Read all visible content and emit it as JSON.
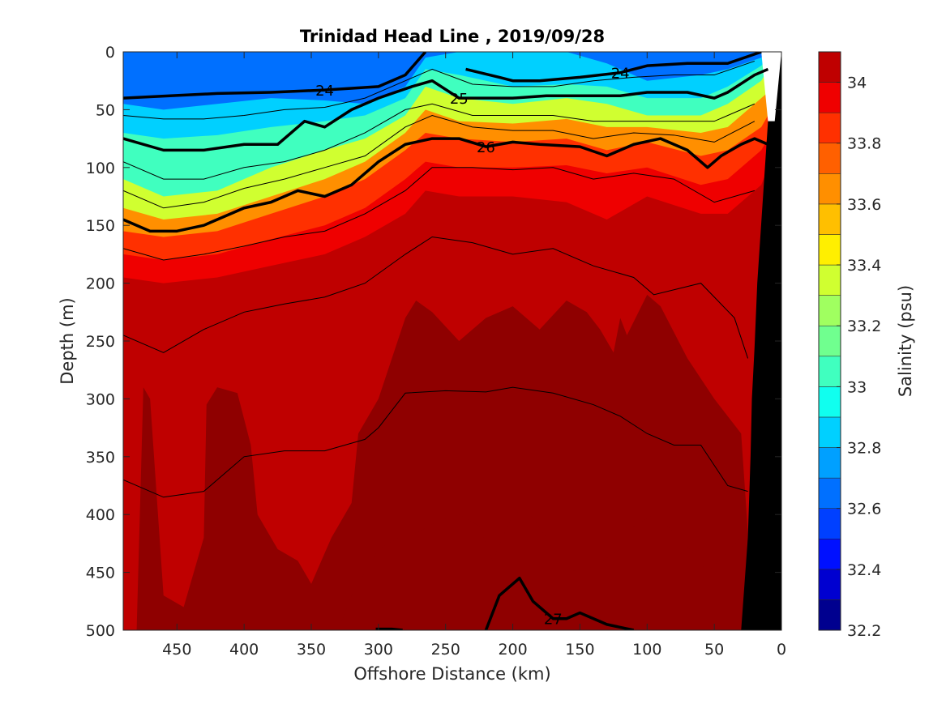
{
  "chart_data": {
    "type": "heatmap",
    "title": "Trinidad Head Line , 2019/09/28",
    "xlabel": "Offshore Distance (km)",
    "ylabel": "Depth (m)",
    "colorbar_label": "Salinity (psu)",
    "x_reversed": true,
    "y_reversed": true,
    "xlim": [
      490,
      0
    ],
    "ylim": [
      0,
      500
    ],
    "x_ticks": [
      450,
      400,
      350,
      300,
      250,
      200,
      150,
      100,
      50,
      0
    ],
    "y_ticks": [
      0,
      50,
      100,
      150,
      200,
      250,
      300,
      350,
      400,
      450,
      500
    ],
    "colorbar_ticks": [
      32.2,
      32.4,
      32.6,
      32.8,
      33,
      33.2,
      33.4,
      33.6,
      33.8,
      34
    ],
    "colorbar_range": [
      32.2,
      34.1
    ],
    "colorbar_levels": [
      32.2,
      32.3,
      32.4,
      32.5,
      32.6,
      32.7,
      32.8,
      32.9,
      33.0,
      33.1,
      33.2,
      33.3,
      33.4,
      33.5,
      33.6,
      33.7,
      33.8,
      33.9,
      34.0
    ],
    "colorbar_colors": [
      "#00008f",
      "#0000d0",
      "#0010ff",
      "#0040ff",
      "#0070ff",
      "#00a0ff",
      "#00d0ff",
      "#10ffef",
      "#40ffbf",
      "#70ff8f",
      "#a0ff60",
      "#d0ff30",
      "#ffef00",
      "#ffbf00",
      "#ff8f00",
      "#ff6000",
      "#ff3000",
      "#ef0000",
      "#bf0000",
      "#8f0000"
    ],
    "salinity_bands": [
      {
        "salinity": 32.55,
        "x": [
          490,
          460,
          420,
          380,
          340,
          310,
          280,
          265,
          240,
          200,
          160,
          130,
          100,
          60,
          40,
          15,
          10
        ],
        "depth": [
          0,
          0,
          0,
          0,
          0,
          0,
          0,
          0,
          0,
          0,
          0,
          0,
          0,
          0,
          0,
          0,
          0
        ],
        "depth_bottom": [
          45,
          50,
          45,
          40,
          42,
          45,
          30,
          5,
          0,
          0,
          0,
          10,
          25,
          20,
          15,
          5,
          0
        ]
      },
      {
        "salinity": 32.75,
        "x": [
          490,
          460,
          420,
          380,
          340,
          310,
          280,
          265,
          240,
          200,
          160,
          130,
          100,
          60,
          40,
          15,
          10
        ],
        "depth_bottom": [
          70,
          75,
          72,
          65,
          60,
          55,
          40,
          15,
          20,
          30,
          28,
          30,
          40,
          40,
          30,
          12,
          5
        ]
      },
      {
        "salinity": 32.95,
        "x": [
          490,
          460,
          420,
          380,
          340,
          310,
          280,
          265,
          240,
          200,
          160,
          130,
          100,
          60,
          40,
          15,
          10
        ],
        "depth_bottom": [
          110,
          125,
          120,
          100,
          85,
          75,
          55,
          30,
          40,
          45,
          40,
          45,
          55,
          55,
          45,
          25,
          15
        ]
      },
      {
        "salinity": 33.25,
        "x": [
          490,
          460,
          420,
          380,
          340,
          310,
          280,
          265,
          240,
          200,
          160,
          130,
          100,
          60,
          40,
          15,
          10
        ],
        "depth_bottom": [
          135,
          145,
          140,
          125,
          110,
          95,
          70,
          50,
          60,
          62,
          58,
          65,
          65,
          70,
          65,
          40,
          35
        ]
      },
      {
        "salinity": 33.55,
        "x": [
          490,
          460,
          420,
          380,
          340,
          310,
          280,
          265,
          240,
          200,
          160,
          130,
          100,
          60,
          40,
          15,
          10
        ],
        "depth_bottom": [
          155,
          160,
          155,
          140,
          125,
          110,
          85,
          70,
          75,
          78,
          75,
          85,
          78,
          90,
          85,
          65,
          55
        ]
      },
      {
        "salinity": 33.75,
        "x": [
          490,
          460,
          420,
          380,
          340,
          310,
          280,
          265,
          240,
          200,
          160,
          130,
          100,
          60,
          40,
          15,
          10
        ],
        "depth_bottom": [
          175,
          180,
          175,
          162,
          150,
          135,
          110,
          95,
          100,
          100,
          98,
          105,
          100,
          115,
          110,
          85,
          75
        ]
      },
      {
        "salinity": 33.85,
        "x": [
          490,
          460,
          420,
          380,
          340,
          310,
          280,
          265,
          240,
          200,
          160,
          130,
          100,
          60,
          40,
          15,
          10
        ],
        "depth_bottom": [
          195,
          200,
          195,
          185,
          175,
          160,
          140,
          120,
          125,
          125,
          130,
          145,
          125,
          140,
          140,
          115,
          100
        ]
      }
    ],
    "deep_salinity_patches": [
      {
        "salinity": 34.05,
        "x": [
          490,
          480,
          475,
          470,
          460,
          445,
          430,
          428,
          420,
          405,
          395,
          390,
          375,
          360,
          350,
          335,
          320,
          315,
          300,
          280,
          272,
          260,
          240,
          220,
          200,
          180,
          160,
          145,
          135,
          125,
          120,
          115,
          100,
          90,
          70,
          50,
          30,
          20
        ],
        "depth": [
          500,
          500,
          290,
          300,
          470,
          480,
          420,
          305,
          290,
          295,
          340,
          400,
          430,
          440,
          460,
          420,
          390,
          330,
          300,
          230,
          215,
          225,
          250,
          230,
          220,
          240,
          215,
          225,
          240,
          260,
          230,
          245,
          210,
          220,
          265,
          300,
          330,
          500
        ]
      },
      {
        "salinity": 34.15,
        "x": [
          330,
          320,
          300,
          285,
          270,
          255,
          240,
          225,
          215,
          200,
          190,
          175,
          160,
          140,
          120,
          110,
          95,
          75,
          55,
          30,
          25
        ],
        "depth": [
          500,
          470,
          430,
          420,
          415,
          405,
          400,
          410,
          440,
          400,
          395,
          420,
          450,
          445,
          430,
          410,
          400,
          420,
          450,
          420,
          500
        ]
      }
    ],
    "isopycnals_labeled": [
      {
        "label": "24",
        "x": [
          490,
          455,
          420,
          380,
          340,
          300,
          280,
          265
        ],
        "depth": [
          40,
          38,
          36,
          35,
          33,
          30,
          20,
          0
        ]
      },
      {
        "label": "24",
        "x": [
          235,
          210,
          200,
          180,
          150,
          120,
          100,
          70,
          40,
          20,
          15
        ],
        "depth": [
          15,
          22,
          25,
          25,
          22,
          18,
          12,
          10,
          10,
          2,
          0
        ]
      },
      {
        "label": "25",
        "x": [
          490,
          460,
          430,
          400,
          375,
          355,
          340,
          320,
          300,
          275,
          260,
          240,
          220,
          200,
          175,
          150,
          120,
          100,
          70,
          50,
          40,
          20,
          10
        ],
        "depth": [
          75,
          85,
          85,
          80,
          80,
          60,
          65,
          50,
          40,
          30,
          25,
          40,
          40,
          40,
          38,
          38,
          38,
          35,
          35,
          40,
          35,
          20,
          15
        ]
      },
      {
        "label": "26",
        "x": [
          490,
          470,
          450,
          430,
          400,
          380,
          360,
          340,
          320,
          300,
          280,
          260,
          240,
          220,
          200,
          180,
          150,
          130,
          110,
          90,
          70,
          55,
          45,
          30,
          20,
          10
        ],
        "depth": [
          145,
          155,
          155,
          150,
          135,
          130,
          120,
          125,
          115,
          95,
          80,
          75,
          75,
          82,
          78,
          80,
          82,
          90,
          80,
          75,
          85,
          100,
          90,
          80,
          75,
          80
        ]
      },
      {
        "label": "27",
        "x": [
          220,
          210,
          195,
          185,
          170,
          160,
          150,
          130,
          110
        ],
        "depth": [
          500,
          470,
          455,
          475,
          490,
          490,
          485,
          495,
          500
        ]
      },
      {
        "label": "",
        "x": [
          302,
          290,
          282
        ],
        "depth": [
          499,
          499,
          500
        ]
      }
    ],
    "isopycnals_thin": [
      {
        "x": [
          490,
          460,
          430,
          400,
          370,
          340,
          310,
          280,
          260,
          230,
          200,
          170,
          140,
          110,
          80,
          50,
          20
        ],
        "depth": [
          55,
          58,
          58,
          55,
          50,
          48,
          40,
          25,
          15,
          28,
          30,
          30,
          25,
          22,
          20,
          20,
          8
        ]
      },
      {
        "x": [
          490,
          460,
          430,
          400,
          370,
          340,
          310,
          280,
          260,
          230,
          200,
          170,
          140,
          110,
          80,
          50,
          20
        ],
        "depth": [
          95,
          110,
          110,
          100,
          95,
          85,
          70,
          50,
          45,
          55,
          55,
          55,
          60,
          60,
          60,
          60,
          45
        ]
      },
      {
        "x": [
          490,
          460,
          430,
          400,
          370,
          340,
          310,
          280,
          260,
          230,
          200,
          170,
          140,
          110,
          80,
          50,
          20
        ],
        "depth": [
          120,
          135,
          130,
          118,
          110,
          100,
          90,
          65,
          55,
          65,
          68,
          68,
          75,
          70,
          72,
          78,
          60
        ]
      },
      {
        "x": [
          490,
          460,
          430,
          400,
          370,
          340,
          310,
          280,
          260,
          230,
          200,
          170,
          140,
          110,
          80,
          50,
          20
        ],
        "depth": [
          170,
          180,
          175,
          168,
          160,
          155,
          140,
          120,
          100,
          100,
          102,
          100,
          110,
          105,
          110,
          130,
          120
        ]
      },
      {
        "x": [
          490,
          460,
          430,
          400,
          370,
          340,
          310,
          280,
          260,
          230,
          200,
          170,
          140,
          110,
          95,
          60,
          35,
          25
        ],
        "depth": [
          245,
          260,
          240,
          225,
          218,
          212,
          200,
          175,
          160,
          165,
          175,
          170,
          185,
          195,
          210,
          200,
          230,
          265
        ]
      },
      {
        "x": [
          490,
          460,
          430,
          400,
          370,
          340,
          310,
          300,
          280,
          250,
          220,
          200,
          170,
          140,
          120,
          100,
          80,
          60,
          40,
          25
        ],
        "depth": [
          370,
          385,
          380,
          350,
          345,
          345,
          335,
          325,
          295,
          293,
          294,
          290,
          295,
          305,
          315,
          330,
          340,
          340,
          375,
          380
        ]
      }
    ],
    "bathymetry": {
      "x": [
        30,
        25,
        23,
        22,
        20,
        18,
        10,
        5
      ],
      "depth": [
        500,
        420,
        350,
        300,
        255,
        200,
        60,
        0
      ]
    }
  }
}
